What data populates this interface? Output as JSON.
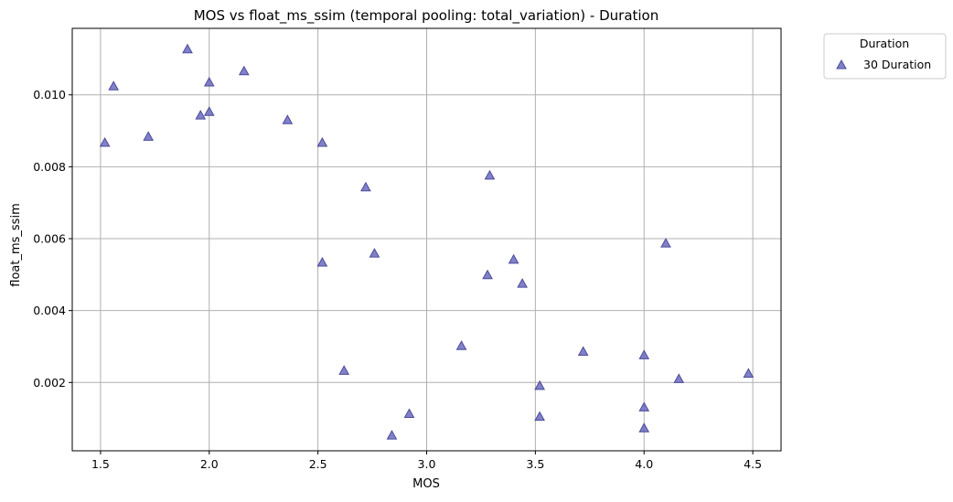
{
  "chart_data": {
    "type": "scatter",
    "title": "MOS vs float_ms_ssim (temporal pooling: total_variation) - Duration",
    "xlabel": "MOS",
    "ylabel": "float_ms_ssim",
    "xlim": [
      1.37,
      4.63
    ],
    "ylim": [
      0.0001,
      0.01185
    ],
    "x_ticks": [
      1.5,
      2.0,
      2.5,
      3.0,
      3.5,
      4.0,
      4.5
    ],
    "x_tick_labels": [
      "1.5",
      "2.0",
      "2.5",
      "3.0",
      "3.5",
      "4.0",
      "4.5"
    ],
    "y_ticks": [
      0.002,
      0.004,
      0.006,
      0.008,
      0.01
    ],
    "y_tick_labels": [
      "0.002",
      "0.004",
      "0.006",
      "0.008",
      "0.010"
    ],
    "grid": true,
    "legend": {
      "title": "Duration",
      "placement": "outside-upper-right"
    },
    "series": [
      {
        "name": "30 Duration",
        "marker": "triangle",
        "color": "#6b6bbf",
        "edge_color": "#4a4a9a",
        "points": [
          {
            "x": 1.52,
            "y": 0.00867
          },
          {
            "x": 1.56,
            "y": 0.01024
          },
          {
            "x": 1.72,
            "y": 0.00884
          },
          {
            "x": 1.9,
            "y": 0.01127
          },
          {
            "x": 1.96,
            "y": 0.00943
          },
          {
            "x": 2.0,
            "y": 0.01035
          },
          {
            "x": 2.0,
            "y": 0.00953
          },
          {
            "x": 2.16,
            "y": 0.01066
          },
          {
            "x": 2.36,
            "y": 0.0093
          },
          {
            "x": 2.52,
            "y": 0.00867
          },
          {
            "x": 2.52,
            "y": 0.00534
          },
          {
            "x": 2.62,
            "y": 0.00233
          },
          {
            "x": 2.72,
            "y": 0.00743
          },
          {
            "x": 2.76,
            "y": 0.00559
          },
          {
            "x": 2.84,
            "y": 0.00053
          },
          {
            "x": 2.92,
            "y": 0.00113
          },
          {
            "x": 3.16,
            "y": 0.00302
          },
          {
            "x": 3.28,
            "y": 0.00499
          },
          {
            "x": 3.29,
            "y": 0.00776
          },
          {
            "x": 3.4,
            "y": 0.00542
          },
          {
            "x": 3.44,
            "y": 0.00475
          },
          {
            "x": 3.52,
            "y": 0.00191
          },
          {
            "x": 3.52,
            "y": 0.00105
          },
          {
            "x": 3.72,
            "y": 0.00286
          },
          {
            "x": 4.0,
            "y": 0.00276
          },
          {
            "x": 4.0,
            "y": 0.00131
          },
          {
            "x": 4.0,
            "y": 0.00073
          },
          {
            "x": 4.1,
            "y": 0.00587
          },
          {
            "x": 4.16,
            "y": 0.0021
          },
          {
            "x": 4.48,
            "y": 0.00225
          }
        ]
      }
    ]
  }
}
